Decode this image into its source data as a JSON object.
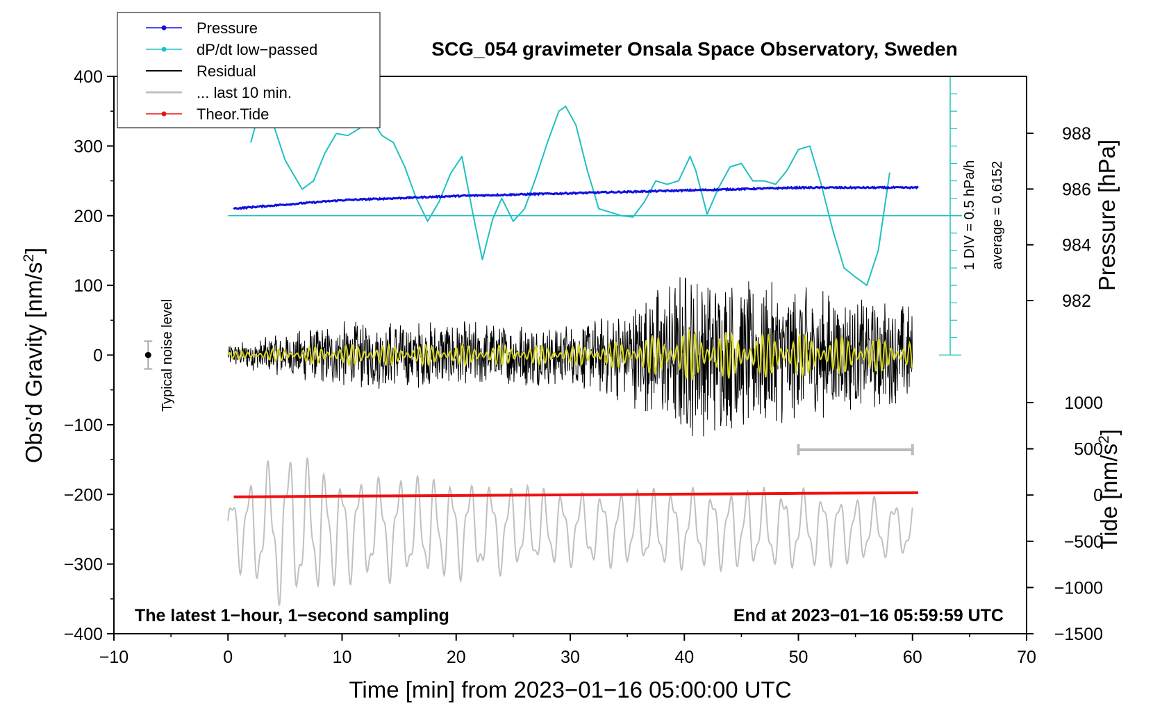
{
  "chart_data": {
    "type": "line",
    "title": "SCG_054 gravimeter Onsala Space Observatory, Sweden",
    "xlabel": "Time [min] from 2023−01−16 05:00:00 UTC",
    "xlim": [
      -10,
      70
    ],
    "x_ticks": [
      "−10",
      "0",
      "10",
      "20",
      "30",
      "40",
      "50",
      "60",
      "70"
    ],
    "ylabel_left_main": "Obs’d Gravity [nm/s",
    "ylabel_left_sup": "2",
    "ylabel_left_end": "]",
    "ylim_left": [
      -400,
      400
    ],
    "y_ticks_left": [
      "400",
      "300",
      "200",
      "100",
      "0",
      "−100",
      "−200",
      "−300",
      "−400"
    ],
    "ylabel_right_top": "Pressure [hPa]",
    "y_ticks_pressure": [
      "988",
      "986",
      "984",
      "982"
    ],
    "pressure_tick_values": [
      988,
      986,
      984,
      982
    ],
    "ylabel_right_bottom_main": "Tide [nm/s",
    "ylabel_right_bottom_sup": "2",
    "ylabel_right_bottom_end": "]",
    "y_ticks_tide": [
      "1000",
      "500",
      "0",
      "−500",
      "−1000",
      "−1500"
    ],
    "tide_tick_values": [
      1000,
      500,
      0,
      -500,
      -1000,
      -1500
    ],
    "legend": [
      "Pressure",
      "dP/dt low−passed",
      "Residual",
      "... last 10 min.",
      "Theor.Tide"
    ],
    "legend_placement": "top-left",
    "note_left": "The latest 1−hour, 1−second sampling",
    "note_right": "End at 2023−01−16 05:59:59 UTC",
    "noise_label": "Typical noise level",
    "noise_bar": {
      "x": -7,
      "y": 0,
      "error": 20
    },
    "scale_label": "1 DIV = 0.5 hPa/h",
    "average_label": "average = 0.6152",
    "ten_min_bar": [
      50,
      60
    ],
    "colors": {
      "pressure": "#1010e0",
      "dpdt": "#20c0c0",
      "residual": "#000000",
      "last10": "#c0c0c0",
      "tide": "#ee1111",
      "residual_filtered": "#d6d620"
    },
    "series": [
      {
        "name": "Pressure",
        "unit": "hPa",
        "x": [
          0.5,
          10,
          20,
          30,
          40,
          50,
          60.5
        ],
        "values": [
          985.3,
          985.6,
          985.75,
          985.85,
          985.95,
          986.05,
          986.05
        ]
      },
      {
        "name": "dP/dt low−passed",
        "unit": "nm/s2 axis",
        "x": [
          2,
          2.5,
          3,
          4,
          5,
          6.5,
          7.5,
          8.5,
          9.5,
          10.5,
          11.5,
          12.5,
          13.5,
          14.5,
          15.5,
          16.5,
          17.5,
          18.5,
          19.5,
          20.5,
          21.5,
          22.3,
          23.2,
          24,
          25,
          26,
          27,
          28,
          29,
          29.6,
          30.5,
          31.5,
          32.5,
          33.5,
          34.5,
          35.5,
          36.5,
          37.5,
          38.5,
          39.5,
          40.5,
          41,
          42,
          43,
          44,
          45,
          46,
          47,
          48,
          49,
          50,
          51,
          52,
          53,
          54,
          55,
          56,
          57,
          58
        ],
        "values": [
          305,
          335,
          355,
          330,
          280,
          238,
          250,
          290,
          318,
          315,
          325,
          340,
          315,
          305,
          270,
          225,
          192,
          220,
          260,
          285,
          200,
          137,
          195,
          225,
          192,
          210,
          255,
          305,
          350,
          357,
          330,
          265,
          210,
          205,
          200,
          198,
          220,
          250,
          245,
          250,
          285,
          265,
          202,
          240,
          270,
          275,
          250,
          250,
          245,
          265,
          295,
          300,
          245,
          180,
          125,
          112,
          100,
          150,
          262
        ]
      },
      {
        "name": "Residual",
        "unit": "nm/s2",
        "x_range": [
          0,
          60
        ],
        "envelope": [
          [
            0,
            15
          ],
          [
            10,
            50
          ],
          [
            20,
            50
          ],
          [
            30,
            45
          ],
          [
            35,
            70
          ],
          [
            40,
            125
          ],
          [
            45,
            110
          ],
          [
            50,
            105
          ],
          [
            55,
            85
          ],
          [
            60,
            75
          ]
        ]
      },
      {
        "name": "... last 10 min.",
        "unit": "nm/s2",
        "x_range": [
          0,
          60
        ],
        "baseline": -250,
        "envelope": [
          [
            0,
            50
          ],
          [
            5,
            120
          ],
          [
            10,
            80
          ],
          [
            20,
            75
          ],
          [
            30,
            55
          ],
          [
            40,
            60
          ],
          [
            50,
            60
          ],
          [
            60,
            40
          ]
        ]
      },
      {
        "name": "Theor.Tide",
        "unit": "nm/s2",
        "x": [
          0.5,
          10,
          20,
          30,
          40,
          50,
          60.5
        ],
        "values": [
          -20,
          -12,
          -5,
          2,
          10,
          18,
          25
        ]
      }
    ]
  }
}
